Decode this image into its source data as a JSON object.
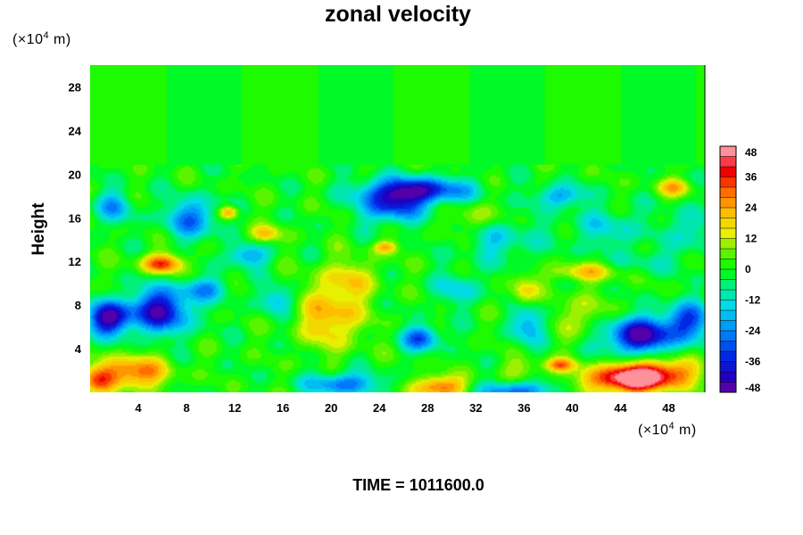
{
  "chart_data": {
    "type": "heatmap",
    "title": "zonal velocity",
    "ylabel": "Height",
    "xlabel": "",
    "x_unit": {
      "prefix": "(×10",
      "exp": "4",
      "suffix": " m)"
    },
    "y_unit": {
      "prefix": "(×10",
      "exp": "4",
      "suffix": " m)"
    },
    "xlim": [
      0,
      51
    ],
    "ylim": [
      0,
      30
    ],
    "x_ticks": [
      4,
      8,
      12,
      16,
      20,
      24,
      28,
      32,
      36,
      40,
      44,
      48
    ],
    "x_tick_labels": [
      "4",
      "8",
      "12",
      "16",
      "20",
      "24",
      "28",
      "32",
      "36",
      "40",
      "44",
      "48"
    ],
    "y_ticks": [
      4,
      8,
      12,
      16,
      20,
      24,
      28
    ],
    "y_tick_labels": [
      "4",
      "8",
      "12",
      "16",
      "20",
      "24",
      "28"
    ],
    "colorbar": {
      "min": -48,
      "max": 48,
      "step": 4,
      "ticks": [
        48,
        36,
        24,
        12,
        0,
        -12,
        -24,
        -36,
        -48
      ],
      "tick_labels": [
        "48",
        "36",
        "24",
        "12",
        "0",
        "-12",
        "-24",
        "-36",
        "-48"
      ]
    },
    "background_value": 0,
    "features": [
      {
        "x": 3.5,
        "y": 1.8,
        "value": 32,
        "rx": 2.8,
        "ry": 1.5
      },
      {
        "x": 0.5,
        "y": 1.2,
        "value": 22,
        "rx": 1.5,
        "ry": 1.2
      },
      {
        "x": 5.8,
        "y": 7.5,
        "value": -42,
        "rx": 2.6,
        "ry": 2.0
      },
      {
        "x": 1.5,
        "y": 6.8,
        "value": -44,
        "rx": 1.8,
        "ry": 1.5
      },
      {
        "x": 45.5,
        "y": 5.2,
        "value": -46,
        "rx": 2.8,
        "ry": 1.6
      },
      {
        "x": 49.5,
        "y": 6.5,
        "value": -30,
        "rx": 2.0,
        "ry": 1.8
      },
      {
        "x": 44.5,
        "y": 1.2,
        "value": 46,
        "rx": 3.5,
        "ry": 1.3
      },
      {
        "x": 47.5,
        "y": 1.8,
        "value": 28,
        "rx": 3.0,
        "ry": 1.3
      },
      {
        "x": 29.0,
        "y": 0.5,
        "value": 34,
        "rx": 2.0,
        "ry": 1.0
      },
      {
        "x": 20.0,
        "y": 7.0,
        "value": 24,
        "rx": 2.6,
        "ry": 2.8
      },
      {
        "x": 21.5,
        "y": 10.5,
        "value": 14,
        "rx": 2.5,
        "ry": 1.8
      },
      {
        "x": 27.0,
        "y": 18.5,
        "value": -42,
        "rx": 4.2,
        "ry": 1.2
      },
      {
        "x": 25.0,
        "y": 17.0,
        "value": -30,
        "rx": 2.5,
        "ry": 1.5
      },
      {
        "x": 6.0,
        "y": 11.8,
        "value": 34,
        "rx": 1.8,
        "ry": 0.9
      },
      {
        "x": 11.5,
        "y": 16.5,
        "value": 30,
        "rx": 0.8,
        "ry": 0.6
      },
      {
        "x": 8.5,
        "y": 16.0,
        "value": -26,
        "rx": 2.2,
        "ry": 1.8
      },
      {
        "x": 2.0,
        "y": 17.0,
        "value": -20,
        "rx": 1.5,
        "ry": 1.5
      },
      {
        "x": 27.5,
        "y": 5.0,
        "value": -30,
        "rx": 1.6,
        "ry": 1.1
      },
      {
        "x": 21.0,
        "y": 0.8,
        "value": -28,
        "rx": 3.0,
        "ry": 1.0
      },
      {
        "x": 35.5,
        "y": 0.2,
        "value": -28,
        "rx": 3.0,
        "ry": 0.8
      },
      {
        "x": 36.5,
        "y": 6.5,
        "value": -22,
        "rx": 1.5,
        "ry": 2.0
      },
      {
        "x": 36.0,
        "y": 9.0,
        "value": 20,
        "rx": 1.2,
        "ry": 1.5
      },
      {
        "x": 41.0,
        "y": 11.0,
        "value": 18,
        "rx": 3.0,
        "ry": 0.8
      },
      {
        "x": 48.5,
        "y": 18.8,
        "value": 20,
        "rx": 1.5,
        "ry": 0.8
      },
      {
        "x": 39.0,
        "y": 18.0,
        "value": -22,
        "rx": 2.0,
        "ry": 1.0
      },
      {
        "x": 14.5,
        "y": 14.5,
        "value": 20,
        "rx": 1.3,
        "ry": 0.8
      },
      {
        "x": 13.0,
        "y": 12.5,
        "value": -22,
        "rx": 1.8,
        "ry": 1.0
      },
      {
        "x": 9.5,
        "y": 9.5,
        "value": -20,
        "rx": 2.0,
        "ry": 1.0
      },
      {
        "x": 15.5,
        "y": 8.5,
        "value": -18,
        "rx": 1.5,
        "ry": 1.2
      },
      {
        "x": 34.0,
        "y": 14.0,
        "value": -14,
        "rx": 3.0,
        "ry": 2.0
      },
      {
        "x": 43.0,
        "y": 15.0,
        "value": -12,
        "rx": 3.5,
        "ry": 2.0
      },
      {
        "x": 30.5,
        "y": 9.5,
        "value": -14,
        "rx": 2.0,
        "ry": 1.5
      },
      {
        "x": 40.5,
        "y": 7.0,
        "value": 12,
        "rx": 2.5,
        "ry": 2.0
      },
      {
        "x": 36.0,
        "y": 2.2,
        "value": 10,
        "rx": 2.0,
        "ry": 1.0
      },
      {
        "x": 39.0,
        "y": 2.5,
        "value": 26,
        "rx": 1.2,
        "ry": 0.6
      },
      {
        "x": 24.5,
        "y": 13.3,
        "value": 22,
        "rx": 1.0,
        "ry": 0.6
      },
      {
        "x": 32.0,
        "y": 16.0,
        "value": 12,
        "rx": 2.0,
        "ry": 1.5
      },
      {
        "x": 46.5,
        "y": 12.0,
        "value": -10,
        "rx": 2.0,
        "ry": 1.2
      },
      {
        "x": 50.0,
        "y": 15.0,
        "value": -16,
        "rx": 1.5,
        "ry": 2.0
      }
    ]
  },
  "footer": {
    "time_label": "TIME = 1011600.0"
  }
}
